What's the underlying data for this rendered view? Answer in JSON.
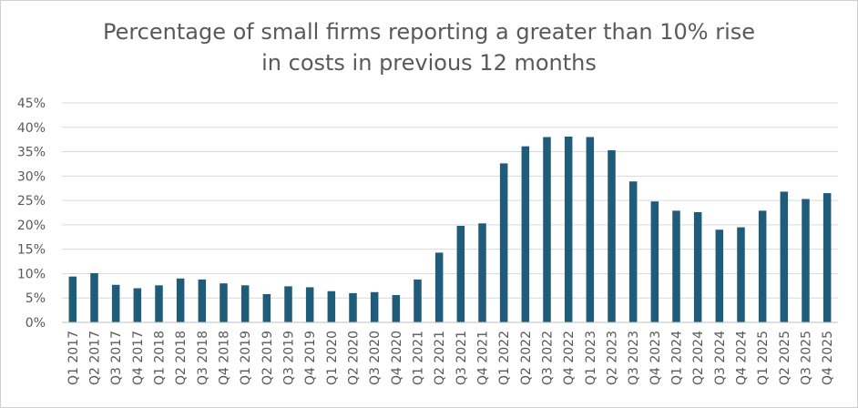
{
  "chart_data": {
    "type": "bar",
    "title_lines": [
      "Percentage of small firms reporting a greater than 10% rise",
      "in costs in previous 12 months"
    ],
    "xlabel": "",
    "ylabel": "",
    "ylim": [
      0,
      45
    ],
    "y_ticks": [
      "0%",
      "5%",
      "10%",
      "15%",
      "20%",
      "25%",
      "30%",
      "35%",
      "40%",
      "45%"
    ],
    "grid": true,
    "legend": "none",
    "bar_color": "#1f5c7a",
    "grid_color": "#d9d9d9",
    "axis_color": "#bfbfbf",
    "categories": [
      "Q1 2017",
      "Q2 2017",
      "Q3 2017",
      "Q4 2017",
      "Q1 2018",
      "Q2 2018",
      "Q3 2018",
      "Q4 2018",
      "Q1 2019",
      "Q2 2019",
      "Q3 2019",
      "Q4 2019",
      "Q1 2020",
      "Q2 2020",
      "Q3 2020",
      "Q4 2020",
      "Q1 2021",
      "Q2 2021",
      "Q3 2021",
      "Q4 2021",
      "Q1 2022",
      "Q2 2022",
      "Q3 2022",
      "Q4 2022",
      "Q1 2023",
      "Q2 2023",
      "Q3 2023",
      "Q4 2023",
      "Q1 2024",
      "Q2 2024",
      "Q3 2024",
      "Q4 2024",
      "Q1 2025",
      "Q2 2025",
      "Q3 2025",
      "Q4 2025"
    ],
    "values": [
      9.4,
      10.1,
      7.7,
      7.0,
      7.6,
      9.0,
      8.8,
      8.0,
      7.6,
      5.8,
      7.4,
      7.2,
      6.4,
      6.0,
      6.2,
      5.6,
      8.8,
      14.3,
      19.8,
      20.3,
      32.6,
      36.1,
      38.0,
      38.1,
      38.0,
      35.3,
      28.9,
      24.8,
      22.9,
      22.6,
      19.0,
      19.5,
      22.9,
      26.8,
      25.3,
      26.5
    ]
  }
}
